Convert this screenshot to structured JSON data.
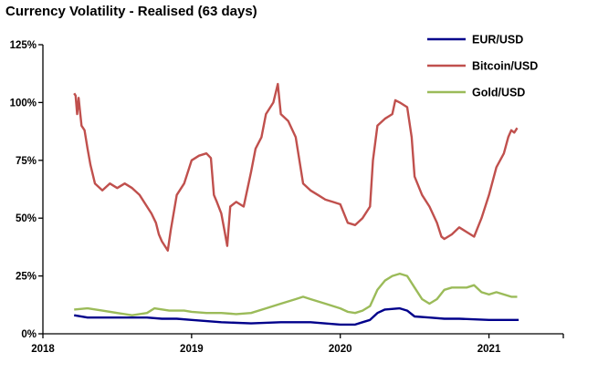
{
  "chart_data": {
    "type": "line",
    "title": "Currency Volatility - Realised (63 days)",
    "xlabel": "",
    "ylabel": "",
    "x_range": [
      2018.0,
      2021.5
    ],
    "ylim": [
      0,
      125
    ],
    "y_ticks": [
      0,
      25,
      50,
      75,
      100,
      125
    ],
    "y_tick_labels": [
      "0%",
      "25%",
      "50%",
      "75%",
      "100%",
      "125%"
    ],
    "x_ticks": [
      2018,
      2019,
      2020,
      2021
    ],
    "x_tick_labels": [
      "2018",
      "2019",
      "2020",
      "2021"
    ],
    "grid": false,
    "legend_position": "top-right",
    "series": [
      {
        "name": "EUR/USD",
        "color": "#00008b",
        "points": [
          [
            2018.21,
            8
          ],
          [
            2018.3,
            7
          ],
          [
            2018.4,
            7
          ],
          [
            2018.5,
            7
          ],
          [
            2018.6,
            7
          ],
          [
            2018.7,
            7
          ],
          [
            2018.8,
            6.5
          ],
          [
            2018.9,
            6.5
          ],
          [
            2019.0,
            6
          ],
          [
            2019.2,
            5
          ],
          [
            2019.4,
            4.5
          ],
          [
            2019.6,
            5
          ],
          [
            2019.8,
            5
          ],
          [
            2020.0,
            4
          ],
          [
            2020.1,
            4
          ],
          [
            2020.15,
            5
          ],
          [
            2020.2,
            6
          ],
          [
            2020.25,
            9
          ],
          [
            2020.3,
            10.5
          ],
          [
            2020.4,
            11
          ],
          [
            2020.45,
            10
          ],
          [
            2020.5,
            7.5
          ],
          [
            2020.6,
            7
          ],
          [
            2020.7,
            6.5
          ],
          [
            2020.8,
            6.5
          ],
          [
            2021.0,
            6
          ],
          [
            2021.1,
            6
          ],
          [
            2021.2,
            6
          ]
        ]
      },
      {
        "name": "Bitcoin/USD",
        "color": "#c0504d",
        "points": [
          [
            2018.21,
            104
          ],
          [
            2018.22,
            103
          ],
          [
            2018.23,
            95
          ],
          [
            2018.24,
            102
          ],
          [
            2018.26,
            90
          ],
          [
            2018.28,
            88
          ],
          [
            2018.3,
            80
          ],
          [
            2018.32,
            73
          ],
          [
            2018.35,
            65
          ],
          [
            2018.4,
            62
          ],
          [
            2018.45,
            65
          ],
          [
            2018.5,
            63
          ],
          [
            2018.55,
            65
          ],
          [
            2018.6,
            63
          ],
          [
            2018.65,
            60
          ],
          [
            2018.7,
            55
          ],
          [
            2018.73,
            52
          ],
          [
            2018.76,
            48
          ],
          [
            2018.78,
            43
          ],
          [
            2018.8,
            40
          ],
          [
            2018.82,
            38
          ],
          [
            2018.84,
            36
          ],
          [
            2018.86,
            45
          ],
          [
            2018.9,
            60
          ],
          [
            2018.95,
            65
          ],
          [
            2019.0,
            75
          ],
          [
            2019.05,
            77
          ],
          [
            2019.1,
            78
          ],
          [
            2019.13,
            76
          ],
          [
            2019.15,
            60
          ],
          [
            2019.17,
            57
          ],
          [
            2019.2,
            52
          ],
          [
            2019.22,
            45
          ],
          [
            2019.24,
            38
          ],
          [
            2019.26,
            55
          ],
          [
            2019.3,
            57
          ],
          [
            2019.35,
            55
          ],
          [
            2019.4,
            70
          ],
          [
            2019.43,
            80
          ],
          [
            2019.47,
            85
          ],
          [
            2019.5,
            95
          ],
          [
            2019.55,
            100
          ],
          [
            2019.58,
            108
          ],
          [
            2019.6,
            95
          ],
          [
            2019.65,
            92
          ],
          [
            2019.7,
            85
          ],
          [
            2019.75,
            65
          ],
          [
            2019.8,
            62
          ],
          [
            2019.85,
            60
          ],
          [
            2019.9,
            58
          ],
          [
            2019.95,
            57
          ],
          [
            2020.0,
            56
          ],
          [
            2020.05,
            48
          ],
          [
            2020.1,
            47
          ],
          [
            2020.15,
            50
          ],
          [
            2020.2,
            55
          ],
          [
            2020.22,
            75
          ],
          [
            2020.25,
            90
          ],
          [
            2020.3,
            93
          ],
          [
            2020.35,
            95
          ],
          [
            2020.37,
            101
          ],
          [
            2020.4,
            100
          ],
          [
            2020.45,
            98
          ],
          [
            2020.48,
            85
          ],
          [
            2020.5,
            68
          ],
          [
            2020.55,
            60
          ],
          [
            2020.6,
            55
          ],
          [
            2020.65,
            48
          ],
          [
            2020.68,
            42
          ],
          [
            2020.7,
            41
          ],
          [
            2020.75,
            43
          ],
          [
            2020.8,
            46
          ],
          [
            2020.85,
            44
          ],
          [
            2020.9,
            42
          ],
          [
            2020.95,
            50
          ],
          [
            2021.0,
            60
          ],
          [
            2021.05,
            72
          ],
          [
            2021.1,
            78
          ],
          [
            2021.13,
            85
          ],
          [
            2021.15,
            88
          ],
          [
            2021.17,
            87
          ],
          [
            2021.19,
            89
          ]
        ]
      },
      {
        "name": "Gold/USD",
        "color": "#9bbb59",
        "points": [
          [
            2018.21,
            10.5
          ],
          [
            2018.3,
            11
          ],
          [
            2018.4,
            10
          ],
          [
            2018.5,
            9
          ],
          [
            2018.6,
            8
          ],
          [
            2018.7,
            9
          ],
          [
            2018.75,
            11
          ],
          [
            2018.85,
            10
          ],
          [
            2018.95,
            10
          ],
          [
            2019.0,
            9.5
          ],
          [
            2019.1,
            9
          ],
          [
            2019.2,
            9
          ],
          [
            2019.3,
            8.5
          ],
          [
            2019.4,
            9
          ],
          [
            2019.5,
            11
          ],
          [
            2019.6,
            13
          ],
          [
            2019.7,
            15
          ],
          [
            2019.75,
            16
          ],
          [
            2019.8,
            15
          ],
          [
            2019.9,
            13
          ],
          [
            2020.0,
            11
          ],
          [
            2020.05,
            9.5
          ],
          [
            2020.1,
            9
          ],
          [
            2020.15,
            10
          ],
          [
            2020.2,
            12
          ],
          [
            2020.25,
            19
          ],
          [
            2020.3,
            23
          ],
          [
            2020.35,
            25
          ],
          [
            2020.4,
            26
          ],
          [
            2020.45,
            25
          ],
          [
            2020.5,
            20
          ],
          [
            2020.55,
            15
          ],
          [
            2020.6,
            13
          ],
          [
            2020.65,
            15
          ],
          [
            2020.7,
            19
          ],
          [
            2020.75,
            20
          ],
          [
            2020.85,
            20
          ],
          [
            2020.9,
            21
          ],
          [
            2020.95,
            18
          ],
          [
            2021.0,
            17
          ],
          [
            2021.05,
            18
          ],
          [
            2021.1,
            17
          ],
          [
            2021.15,
            16
          ],
          [
            2021.19,
            16
          ]
        ]
      }
    ]
  }
}
